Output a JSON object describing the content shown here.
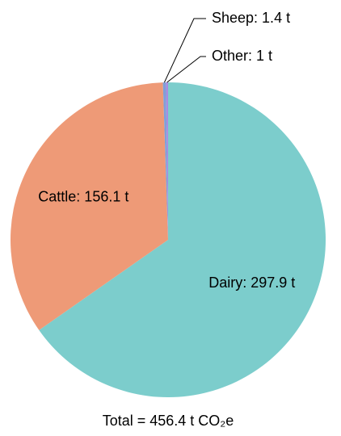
{
  "chart_data": {
    "type": "pie",
    "title": "Total = 456.4 t CO₂e",
    "values": [
      297.9,
      156.1,
      1.4,
      1
    ],
    "value_labels": [
      "Dairy: 297.9 t",
      "Cattle: 156.1 t",
      "Sheep: 1.4 t",
      "Other: 1 t"
    ],
    "colors": [
      "#7ccdcc",
      "#ee9a77",
      "#7f9fd8",
      "#a88ce0"
    ]
  }
}
